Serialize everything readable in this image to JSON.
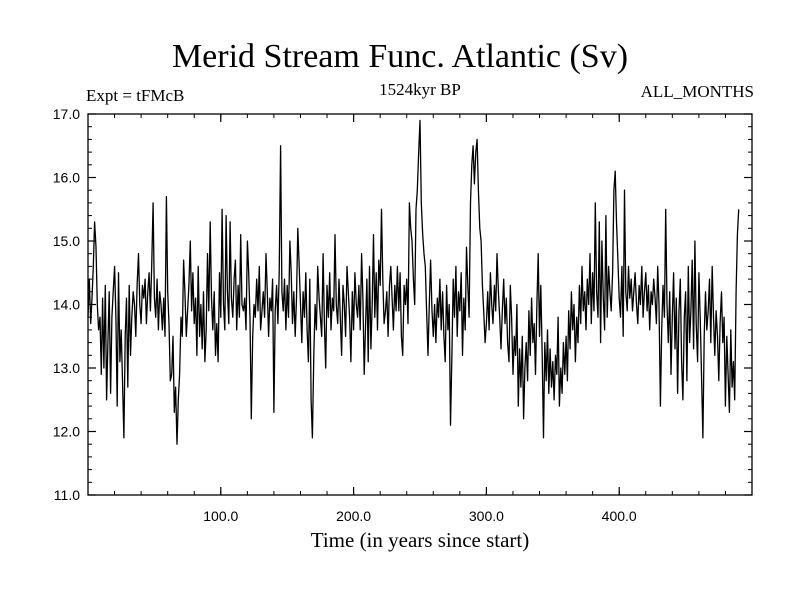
{
  "chart_data": {
    "type": "line",
    "title": "Merid Stream Func. Atlantic (Sv)",
    "subtitle": "1524kyr BP",
    "left_annotation": "Expt = tFMcB",
    "right_annotation": "ALL_MONTHS",
    "xlabel": "Time (in years since start)",
    "ylabel": "",
    "xlim": [
      0,
      500
    ],
    "ylim": [
      11.0,
      17.0
    ],
    "xticks": [
      100,
      200,
      300,
      400
    ],
    "xtick_labels": [
      "100.0",
      "200.0",
      "300.0",
      "400.0"
    ],
    "yticks": [
      11,
      12,
      13,
      14,
      15,
      16,
      17
    ],
    "ytick_labels": [
      "11.0",
      "12.0",
      "13.0",
      "14.0",
      "15.0",
      "16.0",
      "17.0"
    ],
    "grid": false,
    "line_color": "#000000",
    "series": [
      {
        "name": "Merid Stream Func. Atlantic",
        "x_start": 0,
        "x_step": 1,
        "values": [
          13.8,
          14.4,
          13.7,
          14.1,
          14.6,
          15.3,
          14.9,
          14.0,
          13.6,
          13.8,
          12.9,
          14.1,
          13.0,
          14.3,
          12.5,
          13.4,
          14.2,
          12.6,
          13.8,
          14.2,
          14.6,
          13.8,
          12.4,
          14.5,
          13.1,
          13.6,
          12.8,
          11.9,
          13.5,
          14.1,
          12.7,
          14.3,
          13.2,
          13.8,
          14.2,
          14.0,
          13.5,
          14.3,
          14.8,
          14.0,
          13.7,
          14.3,
          14.1,
          14.4,
          13.7,
          14.2,
          14.5,
          13.9,
          14.6,
          15.6,
          14.1,
          13.8,
          14.4,
          13.6,
          14.2,
          14.0,
          13.6,
          14.1,
          13.5,
          15.7,
          14.2,
          13.7,
          12.8,
          12.9,
          13.5,
          12.3,
          12.7,
          11.8,
          12.5,
          12.9,
          13.8,
          13.5,
          14.7,
          14.2,
          13.5,
          13.9,
          14.3,
          15.0,
          13.9,
          14.5,
          13.7,
          14.1,
          13.2,
          14.6,
          13.5,
          14.0,
          13.3,
          14.2,
          13.1,
          13.6,
          14.8,
          13.9,
          15.3,
          14.1,
          13.6,
          14.2,
          13.2,
          13.7,
          13.1,
          14.5,
          13.8,
          15.5,
          14.0,
          13.6,
          15.4,
          14.2,
          13.7,
          15.3,
          14.1,
          13.8,
          14.4,
          14.7,
          13.6,
          14.3,
          13.8,
          15.1,
          14.0,
          13.9,
          14.1,
          13.6,
          15.0,
          14.5,
          13.8,
          12.2,
          13.5,
          14.0,
          13.8,
          14.4,
          13.9,
          14.6,
          13.6,
          13.9,
          14.2,
          13.8,
          14.8,
          14.2,
          13.5,
          14.1,
          13.9,
          14.4,
          12.3,
          13.9,
          14.3,
          13.7,
          14.5,
          16.5,
          14.2,
          13.9,
          14.4,
          13.6,
          14.3,
          13.8,
          15.0,
          14.5,
          13.7,
          14.2,
          13.5,
          14.1,
          15.2,
          14.6,
          14.0,
          13.4,
          14.2,
          13.8,
          14.5,
          13.6,
          13.1,
          14.4,
          12.5,
          11.9,
          13.2,
          14.0,
          13.6,
          14.6,
          14.1,
          13.8,
          13.5,
          14.8,
          13.7,
          13.0,
          14.3,
          13.8,
          14.5,
          13.6,
          14.1,
          13.9,
          15.1,
          14.0,
          13.7,
          14.4,
          13.8,
          13.2,
          14.3,
          14.0,
          13.5,
          14.6,
          14.2,
          13.8,
          13.1,
          14.2,
          13.6,
          14.5,
          14.0,
          13.8,
          14.3,
          13.6,
          14.8,
          14.1,
          12.9,
          13.7,
          14.4,
          13.1,
          14.6,
          13.3,
          14.0,
          15.1,
          13.8,
          14.5,
          13.6,
          14.7,
          14.3,
          15.5,
          14.4,
          13.7,
          13.9,
          14.2,
          13.5,
          14.3,
          14.6,
          14.1,
          13.6,
          14.3,
          13.9,
          14.6,
          13.9,
          14.5,
          13.5,
          13.2,
          14.3,
          14.0,
          14.4,
          13.7,
          15.6,
          15.2,
          15.0,
          14.4,
          14.0,
          15.5,
          15.8,
          16.4,
          16.9,
          15.6,
          15.1,
          14.8,
          14.6,
          13.9,
          13.2,
          14.0,
          14.7,
          13.9,
          13.5,
          14.0,
          13.4,
          14.1,
          13.8,
          14.4,
          13.6,
          14.2,
          13.5,
          13.1,
          14.3,
          13.6,
          14.0,
          12.1,
          13.2,
          14.4,
          13.8,
          14.6,
          13.5,
          14.2,
          13.9,
          14.5,
          13.2,
          14.1,
          13.6,
          14.9,
          14.3,
          13.8,
          15.6,
          16.2,
          16.5,
          15.9,
          16.4,
          16.6,
          15.8,
          15.2,
          15.0,
          14.3,
          13.9,
          13.4,
          13.7,
          14.2,
          13.6,
          14.5,
          14.0,
          13.7,
          14.3,
          13.9,
          14.8,
          14.2,
          13.8,
          13.3,
          13.9,
          14.4,
          13.7,
          14.1,
          13.4,
          13.1,
          14.3,
          13.8,
          12.9,
          13.5,
          13.2,
          14.0,
          12.4,
          13.3,
          12.7,
          13.5,
          12.2,
          13.0,
          13.4,
          12.8,
          13.9,
          13.2,
          14.1,
          13.4,
          13.7,
          12.9,
          14.0,
          14.8,
          13.5,
          14.3,
          13.2,
          11.9,
          13.4,
          12.8,
          13.6,
          12.6,
          13.3,
          12.7,
          13.1,
          12.5,
          13.2,
          12.9,
          13.8,
          12.4,
          13.0,
          12.6,
          13.4,
          12.9,
          13.5,
          12.8,
          13.9,
          13.3,
          14.2,
          13.6,
          14.0,
          13.1,
          13.8,
          13.4,
          14.3,
          13.7,
          14.6,
          13.9,
          14.2,
          13.6,
          14.4,
          14.0,
          14.8,
          13.7,
          14.5,
          13.9,
          15.6,
          14.2,
          13.8,
          15.3,
          13.4,
          15.0,
          14.1,
          13.6,
          15.4,
          13.8,
          14.6,
          14.2,
          13.9,
          14.5,
          15.8,
          16.1,
          15.3,
          14.7,
          14.1,
          13.8,
          14.6,
          13.5,
          15.8,
          14.2,
          13.9,
          14.6,
          14.1,
          14.4,
          13.9,
          14.2,
          14.5,
          14.0,
          13.7,
          14.3,
          14.0,
          14.6,
          13.8,
          14.2,
          14.5,
          13.9,
          14.3,
          13.6,
          14.2,
          14.0,
          14.4,
          14.1,
          13.7,
          14.6,
          14.0,
          12.4,
          13.6,
          14.3,
          13.8,
          15.5,
          14.0,
          13.4,
          14.2,
          12.9,
          13.8,
          14.5,
          13.3,
          14.1,
          12.6,
          13.9,
          14.4,
          13.1,
          12.5,
          13.8,
          14.2,
          12.8,
          14.6,
          13.4,
          13.9,
          14.7,
          13.3,
          15.0,
          13.7,
          13.1,
          14.5,
          13.8,
          12.9,
          11.9,
          13.5,
          14.2,
          13.6,
          13.9,
          14.4,
          13.4,
          14.6,
          13.8,
          13.2,
          13.9,
          13.5,
          12.8,
          13.7,
          14.2,
          13.4,
          13.8,
          12.4,
          13.5,
          12.9,
          12.3,
          13.6,
          12.7,
          13.1,
          12.5,
          14.2,
          15.1,
          15.5
        ]
      }
    ]
  }
}
